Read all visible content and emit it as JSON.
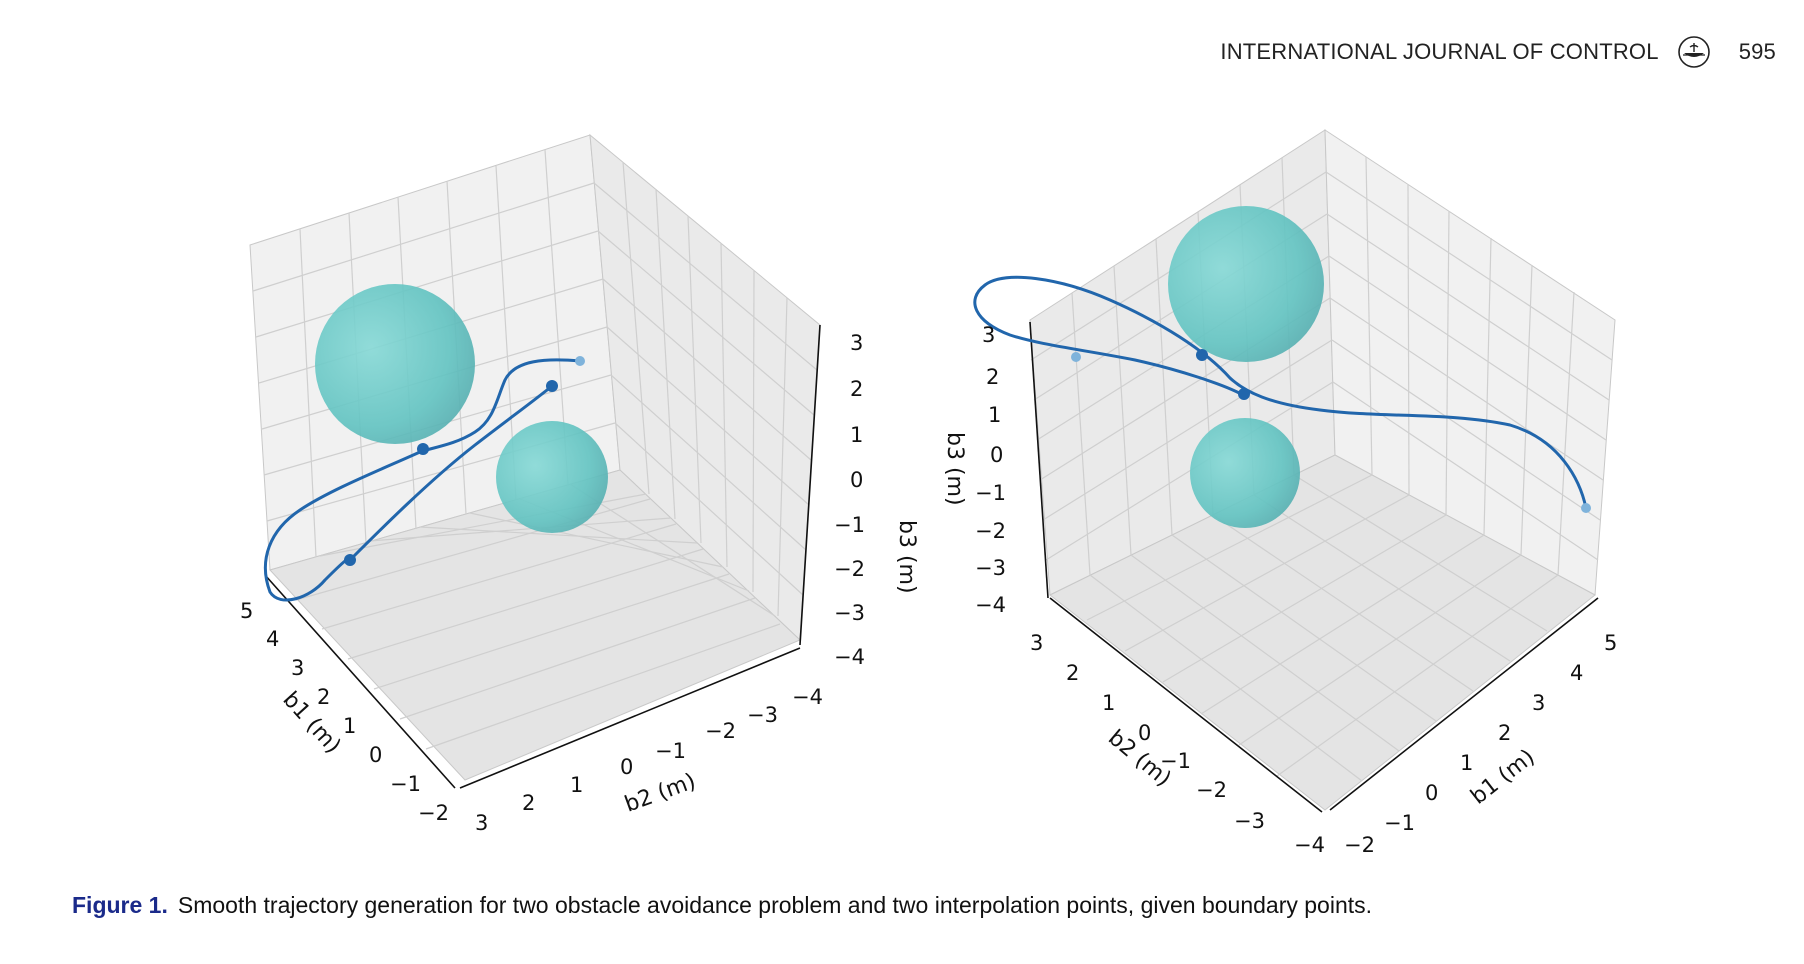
{
  "header": {
    "journal": "INTERNATIONAL JOURNAL OF CONTROL",
    "page": "595",
    "logo_icon": "publisher-logo-icon"
  },
  "figure": {
    "label": "Figure 1.",
    "caption": "Smooth trajectory generation for two obstacle avoidance problem and two interpolation points, given boundary points."
  },
  "chart_data": [
    {
      "type": "3d-line",
      "view": "left",
      "axes": {
        "b1": {
          "label": "b1 (m)",
          "ticks": [
            "5",
            "4",
            "3",
            "2",
            "1",
            "0",
            "−1",
            "−2"
          ],
          "range": [
            -2,
            5
          ]
        },
        "b2": {
          "label": "b2 (m)",
          "ticks": [
            "3",
            "2",
            "1",
            "0",
            "−1",
            "−2",
            "−3",
            "−4"
          ],
          "range": [
            -4,
            3
          ]
        },
        "b3": {
          "label": "b3 (m)",
          "ticks": [
            "3",
            "2",
            "1",
            "0",
            "−1",
            "−2",
            "−3",
            "−4"
          ],
          "range": [
            -4,
            3
          ]
        }
      },
      "series": [
        {
          "kind": "trajectory",
          "color": "#2166ac"
        },
        {
          "kind": "interpolation-points",
          "color": "#2166ac",
          "count": 2
        },
        {
          "kind": "boundary-points",
          "color": "#2166ac",
          "count": 2
        }
      ],
      "obstacles": [
        {
          "kind": "sphere",
          "color": "#5fc4c4",
          "size": "large"
        },
        {
          "kind": "sphere",
          "color": "#5fc4c4",
          "size": "small"
        }
      ],
      "grid": true
    },
    {
      "type": "3d-line",
      "view": "right",
      "axes": {
        "b1": {
          "label": "b1 (m)",
          "ticks": [
            "−2",
            "−1",
            "0",
            "1",
            "2",
            "3",
            "4",
            "5"
          ],
          "range": [
            -2,
            5
          ]
        },
        "b2": {
          "label": "b2 (m)",
          "ticks": [
            "3",
            "2",
            "1",
            "0",
            "−1",
            "−2",
            "−3",
            "−4"
          ],
          "range": [
            -4,
            3
          ]
        },
        "b3": {
          "label": "b3 (m)",
          "ticks": [
            "3",
            "2",
            "1",
            "0",
            "−1",
            "−2",
            "−3",
            "−4"
          ],
          "range": [
            -4,
            3
          ]
        }
      },
      "series": [
        {
          "kind": "trajectory",
          "color": "#2166ac"
        },
        {
          "kind": "interpolation-points",
          "color": "#2166ac",
          "count": 2
        },
        {
          "kind": "boundary-points",
          "color": "#2166ac",
          "count": 2
        }
      ],
      "obstacles": [
        {
          "kind": "sphere",
          "color": "#5fc4c4",
          "size": "large"
        },
        {
          "kind": "sphere",
          "color": "#5fc4c4",
          "size": "small"
        }
      ],
      "grid": true
    }
  ]
}
